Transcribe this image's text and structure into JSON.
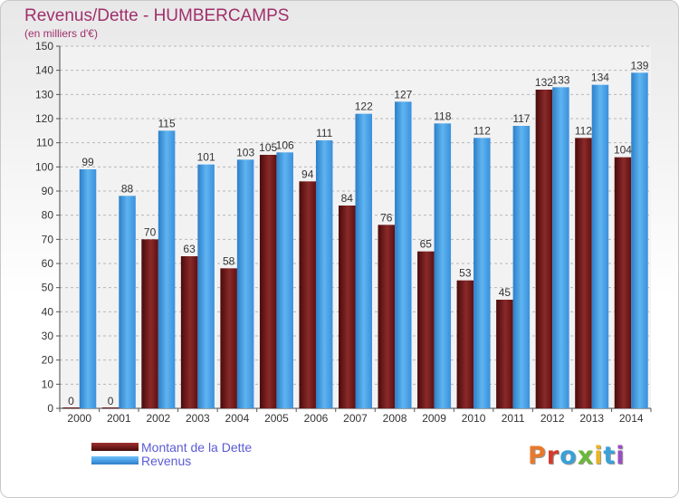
{
  "header": {
    "title": "Revenus/Dette - HUMBERCAMPS",
    "subtitle": "(en milliers d'€)"
  },
  "legend": {
    "debt_label": "Montant de la Dette",
    "revenue_label": "Revenus"
  },
  "logo": {
    "text": "Proxiti",
    "letter_colors": [
      "#e8792b",
      "#d23c2c",
      "#3aa0d8",
      "#6cb83a",
      "#e8b52b",
      "#3aa0d8",
      "#9a4fc0"
    ]
  },
  "colors": {
    "debt": "#7a1f1f",
    "revenue": "#4aa3e6",
    "title": "#a0306c"
  },
  "chart_data": {
    "type": "bar",
    "title": "Revenus/Dette - HUMBERCAMPS",
    "subtitle": "(en milliers d'€)",
    "categories": [
      "2000",
      "2001",
      "2002",
      "2003",
      "2004",
      "2005",
      "2006",
      "2007",
      "2008",
      "2009",
      "2010",
      "2011",
      "2012",
      "2013",
      "2014"
    ],
    "series": [
      {
        "name": "Montant de la Dette",
        "values": [
          0,
          0,
          70,
          63,
          58,
          105,
          94,
          84,
          76,
          65,
          53,
          45,
          132,
          112,
          104
        ]
      },
      {
        "name": "Revenus",
        "values": [
          99,
          88,
          115,
          101,
          103,
          106,
          111,
          122,
          127,
          118,
          112,
          117,
          133,
          134,
          139
        ]
      }
    ],
    "ylim": [
      0,
      150
    ],
    "yticks": [
      0,
      10,
      20,
      30,
      40,
      50,
      60,
      70,
      80,
      90,
      100,
      110,
      120,
      130,
      140,
      150
    ],
    "grid": true,
    "legend_position": "bottom-left"
  }
}
